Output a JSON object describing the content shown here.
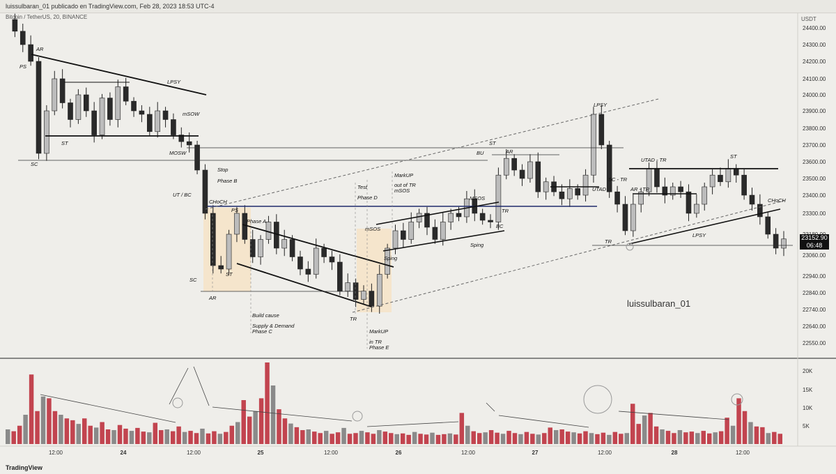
{
  "header": {
    "title": "luissulbaran_01 publicado en TradingView.com, Feb 28, 2023 18:53 UTC-4"
  },
  "symbol": "Bitcoin / TetherUS, 20, BINANCE",
  "watermark": "luissulbaran_01",
  "logo": "TradingView",
  "current_price": {
    "price": "23152.90",
    "countdown": "06:48"
  },
  "colors": {
    "up": "#bcbcbc",
    "down": "#2a2a2a",
    "vol_up": "#c2444f",
    "vol_down": "#8a8a8a",
    "range_fill": "#f6e2c4",
    "horizontal": "#1f2a6b"
  },
  "chart_data": [
    {
      "type": "candlestick",
      "title": "Bitcoin / TetherUS, 20, BINANCE",
      "currency": "USDT",
      "ylim": [
        22480,
        24500
      ],
      "y_ticks": [
        "24400.00",
        "24300.00",
        "24200.00",
        "24100.00",
        "24000.00",
        "23900.00",
        "23800.00",
        "23700.00",
        "23600.00",
        "23500.00",
        "23400.00",
        "23300.00",
        "23180.00",
        "23060.00",
        "22940.00",
        "22840.00",
        "22740.00",
        "22640.00",
        "22550.00"
      ],
      "x_ticks": [
        "12:00",
        "24",
        "12:00",
        "25",
        "12:00",
        "26",
        "12:00",
        "27",
        "12:00",
        "28",
        "12:00"
      ],
      "close_path": [
        24450,
        24380,
        24300,
        24200,
        23650,
        23900,
        24100,
        23950,
        23850,
        24000,
        23900,
        23760,
        23980,
        23850,
        24050,
        23960,
        23900,
        23880,
        23780,
        23900,
        23850,
        23760,
        23720,
        23700,
        23550,
        23300,
        23000,
        22980,
        23180,
        23300,
        23150,
        23050,
        23150,
        23250,
        23100,
        23150,
        23050,
        22980,
        22950,
        23100,
        23050,
        23020,
        22850,
        22900,
        22800,
        22850,
        22760,
        22950,
        23100,
        23200,
        23150,
        23250,
        23300,
        23220,
        23150,
        23250,
        23300,
        23280,
        23380,
        23300,
        23260,
        23250,
        23520,
        23620,
        23550,
        23500,
        23600,
        23420,
        23480,
        23420,
        23380,
        23440,
        23400,
        23520,
        23880,
        23700,
        23420,
        23350,
        23200,
        23350,
        23420,
        23560,
        23450,
        23400,
        23450,
        23420,
        23300,
        23350,
        23450,
        23520,
        23480,
        23560,
        23520,
        23400,
        23350,
        23280,
        23180,
        23100,
        23152.9
      ],
      "annotations": [
        "PS",
        "AR",
        "SC",
        "ST",
        "LPSY",
        "mSOW",
        "MOSW",
        "UT / BC",
        "CHoCH",
        "PS",
        "SC",
        "AR",
        "ST",
        "Phase A",
        "Stop",
        "Phase B",
        "Build cause",
        "Supply & Demand",
        "Phase C",
        "Test",
        "Phase D",
        "MarkUP",
        "in TR",
        "Phase E",
        "MarkUP",
        "out of TR",
        "mSOS",
        "mSOS",
        "MSOS",
        "BU",
        "Sping",
        "Sping",
        "TR",
        "BC",
        "ST",
        "AR",
        "TR",
        "UTAD",
        "LPSY",
        "SC - TR",
        "TR",
        "AR - TR",
        "UTAD - TR",
        "ST",
        "LPSY",
        "CHoCH"
      ]
    },
    {
      "type": "bar",
      "title": "Volume",
      "ylim": [
        0,
        22000
      ],
      "y_ticks": [
        "20K",
        "15K",
        "10K",
        "5K"
      ],
      "values": [
        4000,
        3500,
        5000,
        8000,
        19000,
        9000,
        13000,
        12500,
        9000,
        8000,
        7000,
        6500,
        5500,
        7000,
        5000,
        4500,
        6000,
        4000,
        3800,
        5200,
        4200,
        3600,
        4400,
        3400,
        3200,
        5800,
        3800,
        4000,
        3500,
        4800,
        3300,
        3600,
        3000,
        4200,
        2900,
        3500,
        2800,
        3300,
        5000,
        6000,
        12000,
        7500,
        9000,
        12500,
        23000,
        16000,
        9500,
        7000,
        5600,
        4600,
        3800,
        4000,
        3400,
        3000,
        3600,
        2800,
        3200,
        4400,
        2800,
        3000,
        3600,
        3200,
        2800,
        3800,
        3400,
        3000,
        2700,
        2900,
        2500,
        3300,
        2800,
        2600,
        3100,
        2500,
        2700,
        2900,
        2600,
        8500,
        5000,
        3500,
        3000,
        3200,
        3800,
        3100,
        2800,
        3600,
        3000,
        2700,
        3300,
        2800,
        2600,
        3000,
        4500,
        3800,
        4000,
        3400,
        3200,
        2900,
        3500,
        3000,
        2700,
        3100,
        2500,
        3300,
        2800,
        3000,
        11000,
        5500,
        7800,
        8500,
        4800,
        4000,
        3600,
        3000,
        3800,
        3200,
        3400,
        3000,
        3600,
        2900,
        3200,
        3500,
        7200,
        5000,
        12500,
        9000,
        6000,
        4800,
        4600,
        3000,
        3300,
        2800
      ]
    }
  ]
}
